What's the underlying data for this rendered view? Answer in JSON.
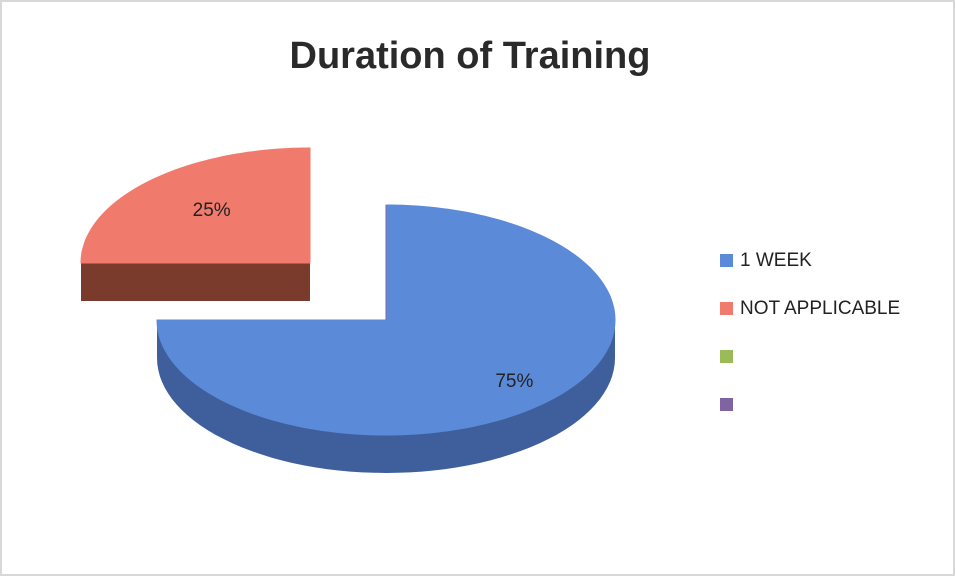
{
  "chart_data": {
    "type": "pie3d",
    "title": "Duration of Training",
    "categories": [
      "1 WEEK",
      "NOT APPLICABLE",
      null,
      null
    ],
    "values": [
      75,
      25,
      0,
      0
    ],
    "value_labels": [
      "75%",
      "25%",
      null,
      null
    ],
    "colors": [
      "#5b8bd8",
      "#f07a6c",
      "#9bbb59",
      "#8064a2"
    ],
    "side_colors": [
      "#3f5f9c",
      "#7a3a2c",
      "#6a8a30",
      "#5a4478"
    ],
    "legend": "right"
  }
}
